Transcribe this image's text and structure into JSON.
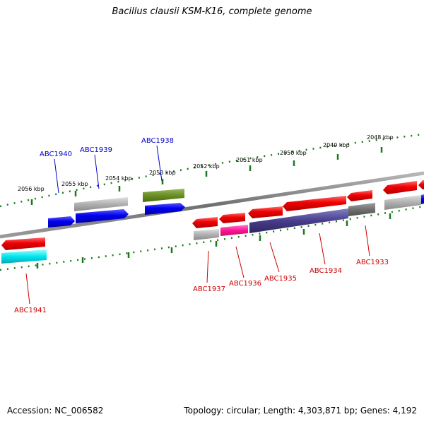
{
  "title": "Bacillus clausii KSM-K16, complete genome",
  "footer": {
    "accession": "Accession: NC_006582",
    "summary": "Topology: circular; Length: 4,303,871 bp; Genes: 4,192"
  },
  "colors": {
    "forward_label": "#0000cc",
    "reverse_label": "#cc0000",
    "tick": "#1a7a1a",
    "backbone": "#808080"
  },
  "scale_labels": [
    "2056 kbp",
    "2055 kbp",
    "2054 kbp",
    "2053 kbp",
    "2052 kbp",
    "2051 kbp",
    "2050 kbp",
    "2049 kbp",
    "2048 kbp"
  ],
  "gene_labels": {
    "forward": [
      "ABC1940",
      "ABC1939",
      "ABC1938"
    ],
    "reverse": [
      "ABC1941",
      "ABC1937",
      "ABC1936",
      "ABC1935",
      "ABC1934",
      "ABC1933"
    ]
  }
}
